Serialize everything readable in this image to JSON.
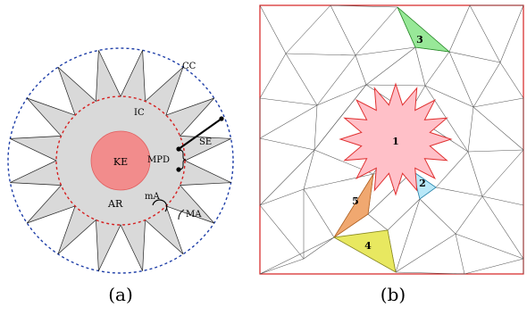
{
  "panel_a": {
    "caption": "(a)",
    "labels": {
      "cc": "CC",
      "ic": "IC",
      "se": "SE",
      "ke": "KE",
      "mpd": "MPD",
      "ar": "AR",
      "ma_small": "mA",
      "ma_large": "MA"
    },
    "colors": {
      "star_fill": "#d9d9d9",
      "kernel_fill": "#f28c8c",
      "kernel_stroke": "#e06060",
      "inner_circle": "#d62020",
      "outer_circle": "#1f3fa8"
    }
  },
  "panel_b": {
    "caption": "(b)",
    "labels": [
      "1",
      "2",
      "3",
      "4",
      "5"
    ],
    "colors": {
      "star_fill": "#ffc0c8",
      "star_stroke": "#e03030",
      "tri_2": "#b8e8f8",
      "tri_3": "#98e898",
      "tri_4": "#e8e860",
      "tri_5": "#f0a870",
      "frame": "#d62020",
      "mesh": "#555555"
    }
  }
}
